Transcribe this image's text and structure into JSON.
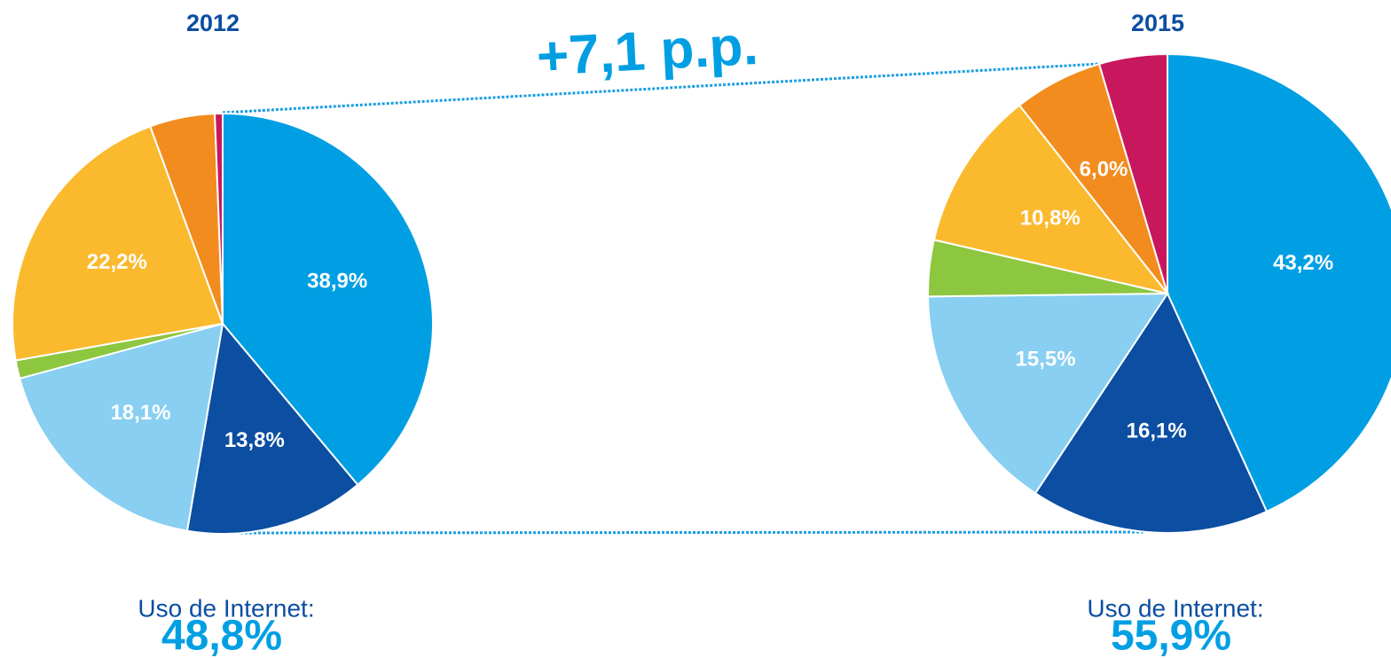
{
  "annotation": "+7,1 p.p.",
  "chart_data": [
    {
      "type": "pie",
      "title": "2012",
      "values": [
        38.9,
        13.8,
        18.1,
        1.4,
        22.2,
        5.0,
        0.6
      ],
      "value_labels": [
        "38,9%",
        "13,8%",
        "18,1%",
        null,
        "22,2%",
        null,
        null
      ],
      "colors": [
        "#009fe3",
        "#0b4ea2",
        "#88cff1",
        "#8dc63f",
        "#fbb92e",
        "#f28c1e",
        "#c8175d"
      ],
      "note": "Uso de Internet:",
      "note_value": "48,8%"
    },
    {
      "type": "pie",
      "title": "2015",
      "values": [
        43.2,
        16.1,
        15.5,
        3.8,
        10.8,
        6.0,
        4.6
      ],
      "value_labels": [
        "43,2%",
        "16,1%",
        "15,5%",
        null,
        "10,8%",
        "6,0%",
        null
      ],
      "colors": [
        "#009fe3",
        "#0b4ea2",
        "#88cff1",
        "#8dc63f",
        "#fbb92e",
        "#f28c1e",
        "#c8175d"
      ],
      "note": "Uso de Internet:",
      "note_value": "55,9%"
    }
  ]
}
